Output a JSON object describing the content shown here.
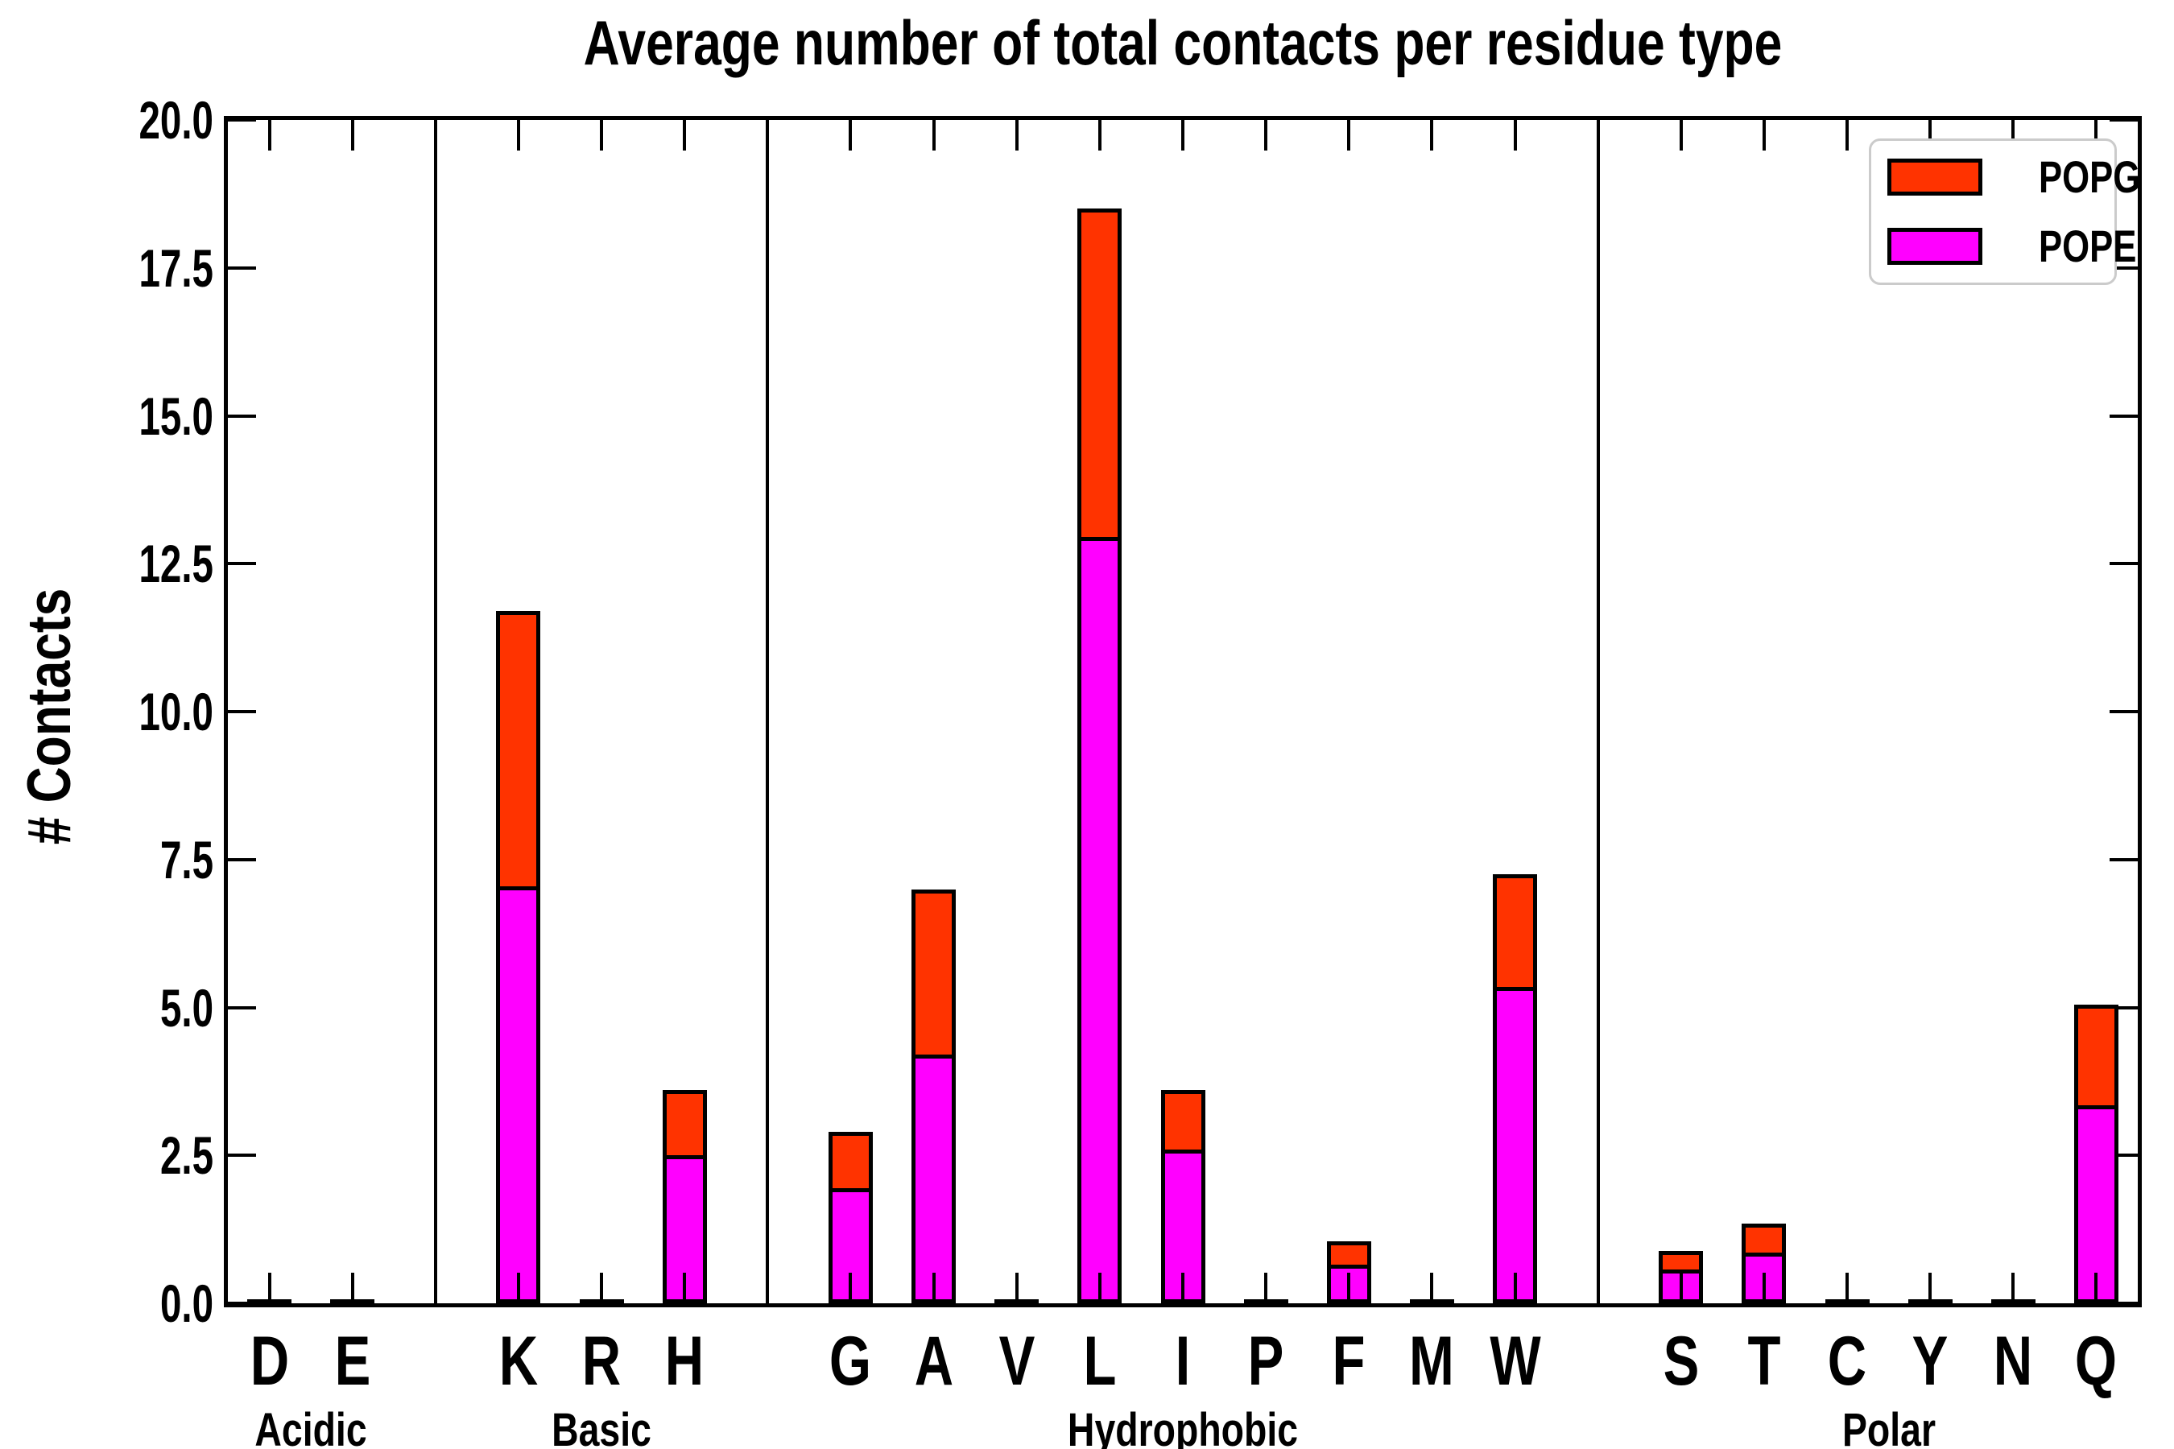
{
  "chart_data": {
    "type": "bar",
    "stacked": true,
    "title": "Average number of total contacts per residue type",
    "ylabel": "# Contacts",
    "xlabel": "",
    "ylim": [
      0,
      20
    ],
    "grid": false,
    "legend_position": "upper right",
    "ytick_values": [
      0,
      2.5,
      5,
      7.5,
      10,
      12.5,
      15,
      17.5,
      20
    ],
    "ytick_labels": [
      "0.0",
      "2.5",
      "5.0",
      "7.5",
      "10.0",
      "12.5",
      "15.0",
      "17.5",
      "20.0"
    ],
    "groups": [
      {
        "name": "Acidic",
        "residues": [
          "D",
          "E"
        ]
      },
      {
        "name": "Basic",
        "residues": [
          "K",
          "R",
          "H"
        ]
      },
      {
        "name": "Hydrophobic",
        "residues": [
          "G",
          "A",
          "V",
          "L",
          "I",
          "P",
          "F",
          "M",
          "W"
        ]
      },
      {
        "name": "Polar",
        "residues": [
          "S",
          "T",
          "C",
          "Y",
          "N",
          "Q"
        ]
      }
    ],
    "categories": [
      "D",
      "E",
      "K",
      "R",
      "H",
      "G",
      "A",
      "V",
      "L",
      "I",
      "P",
      "F",
      "M",
      "W",
      "S",
      "T",
      "C",
      "Y",
      "N",
      "Q"
    ],
    "series": [
      {
        "name": "POPE",
        "color": "#FF00FF",
        "values": [
          0.01,
          0.01,
          7.05,
          0.01,
          2.5,
          1.95,
          4.2,
          0.02,
          12.95,
          2.6,
          0.01,
          0.65,
          0.01,
          5.35,
          0.57,
          0.86,
          0.01,
          0.01,
          0.02,
          3.35
        ]
      },
      {
        "name": "POPG",
        "color": "#FF3300",
        "values": [
          0.01,
          0.01,
          4.65,
          0.01,
          1.1,
          0.95,
          2.8,
          0.01,
          5.55,
          1.0,
          0.01,
          0.4,
          0.01,
          1.9,
          0.31,
          0.49,
          0.01,
          0.01,
          0.01,
          1.7
        ]
      }
    ],
    "legend_order": [
      "POPG",
      "POPE"
    ],
    "axis_color": "#000000",
    "legend_border_color": "#cbcbcb"
  }
}
